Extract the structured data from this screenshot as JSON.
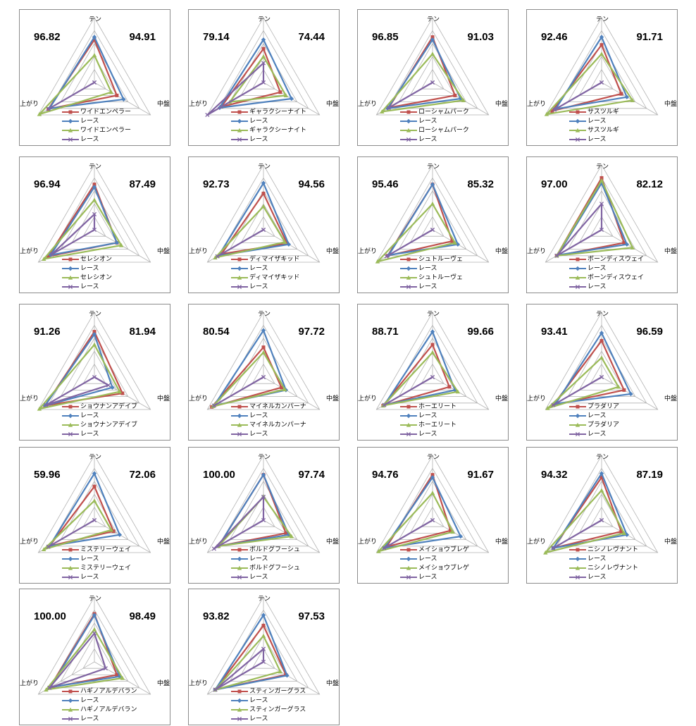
{
  "axes": [
    "テン",
    "中盤",
    "上がり"
  ],
  "series_colors": {
    "horse": "#c0504d",
    "race": "#4f81bd",
    "horse2": "#9bbb59",
    "race2": "#8064a2"
  },
  "race_label": "レース",
  "chart_data": [
    {
      "type": "radar",
      "horse": "ワイドエンペラー",
      "left_score": "96.82",
      "right_score": "94.91",
      "series": [
        {
          "name": "ワイドエンペラー",
          "values": [
            0.66,
            0.4,
            0.82
          ]
        },
        {
          "name": "レース",
          "values": [
            0.7,
            0.52,
            0.8
          ]
        },
        {
          "name": "ワイドエンペラー",
          "values": [
            0.42,
            0.3,
            0.98
          ]
        },
        {
          "name": "レース",
          "values": [
            0.0,
            0.0,
            0.82
          ]
        }
      ]
    },
    {
      "type": "radar",
      "horse": "ギャラクシーナイト",
      "left_score": "79.14",
      "right_score": "74.44",
      "series": [
        {
          "name": "ギャラクシーナイト",
          "values": [
            0.52,
            0.3,
            0.75
          ]
        },
        {
          "name": "レース",
          "values": [
            0.66,
            0.5,
            0.78
          ]
        },
        {
          "name": "ギャラクシーナイト",
          "values": [
            0.4,
            0.4,
            0.6
          ]
        },
        {
          "name": "レース",
          "values": [
            0.3,
            0.0,
            1.0
          ]
        }
      ]
    },
    {
      "type": "radar",
      "horse": "ローシャムパーク",
      "left_score": "96.85",
      "right_score": "91.03",
      "series": [
        {
          "name": "ローシャムパーク",
          "values": [
            0.7,
            0.4,
            0.78
          ]
        },
        {
          "name": "レース",
          "values": [
            0.66,
            0.5,
            0.8
          ]
        },
        {
          "name": "ローシャムパーク",
          "values": [
            0.44,
            0.55,
            0.9
          ]
        },
        {
          "name": "レース",
          "values": [
            0.0,
            0.0,
            0.78
          ]
        }
      ]
    },
    {
      "type": "radar",
      "horse": "サスツルギ",
      "left_score": "92.46",
      "right_score": "91.71",
      "series": [
        {
          "name": "サスツルギ",
          "values": [
            0.58,
            0.35,
            0.88
          ]
        },
        {
          "name": "レース",
          "values": [
            0.7,
            0.45,
            0.82
          ]
        },
        {
          "name": "サスツルギ",
          "values": [
            0.44,
            0.55,
            0.98
          ]
        },
        {
          "name": "レース",
          "values": [
            0.0,
            0.0,
            0.84
          ]
        }
      ]
    },
    {
      "type": "radar",
      "horse": "セレシオン",
      "left_score": "96.94",
      "right_score": "87.49",
      "series": [
        {
          "name": "セレシオン",
          "values": [
            0.7,
            0.4,
            0.82
          ]
        },
        {
          "name": "レース",
          "values": [
            0.66,
            0.4,
            0.78
          ]
        },
        {
          "name": "セレシオン",
          "values": [
            0.46,
            0.48,
            0.9
          ]
        },
        {
          "name": "レース",
          "values": [
            0.24,
            0.0,
            0.76
          ]
        }
      ]
    },
    {
      "type": "radar",
      "horse": "ディマイザキッド",
      "left_score": "92.73",
      "right_score": "94.56",
      "series": [
        {
          "name": "ディマイザキッド",
          "values": [
            0.56,
            0.42,
            0.75
          ]
        },
        {
          "name": "レース",
          "values": [
            0.72,
            0.45,
            0.8
          ]
        },
        {
          "name": "ディマイザキッド",
          "values": [
            0.36,
            0.38,
            0.86
          ]
        },
        {
          "name": "レース",
          "values": [
            0.0,
            0.0,
            0.82
          ]
        }
      ]
    },
    {
      "type": "radar",
      "horse": "シュトルーヴェ",
      "left_score": "95.46",
      "right_score": "85.32",
      "series": [
        {
          "name": "シュトルーヴェ",
          "values": [
            0.7,
            0.35,
            0.8
          ]
        },
        {
          "name": "レース",
          "values": [
            0.7,
            0.45,
            0.78
          ]
        },
        {
          "name": "シュトルーヴェ",
          "values": [
            0.4,
            0.4,
            0.98
          ]
        },
        {
          "name": "レース",
          "values": [
            0.0,
            0.0,
            0.82
          ]
        }
      ]
    },
    {
      "type": "radar",
      "horse": "ボーンディスウェイ",
      "left_score": "97.00",
      "right_score": "82.12",
      "series": [
        {
          "name": "ボーンディスウェイ",
          "values": [
            0.8,
            0.4,
            0.8
          ]
        },
        {
          "name": "レース",
          "values": [
            0.72,
            0.45,
            0.78
          ]
        },
        {
          "name": "ボーンディスウェイ",
          "values": [
            0.76,
            0.55,
            0.8
          ]
        },
        {
          "name": "レース",
          "values": [
            0.4,
            0.0,
            0.8
          ]
        }
      ]
    },
    {
      "type": "radar",
      "horse": "ショウナンアデイブ",
      "left_score": "91.26",
      "right_score": "81.94",
      "series": [
        {
          "name": "ショウナンアデイブ",
          "values": [
            0.7,
            0.5,
            0.88
          ]
        },
        {
          "name": "レース",
          "values": [
            0.66,
            0.32,
            0.88
          ]
        },
        {
          "name": "ショウナンアデイブ",
          "values": [
            0.5,
            0.45,
            0.98
          ]
        },
        {
          "name": "レース",
          "values": [
            0.0,
            0.25,
            0.86
          ]
        }
      ]
    },
    {
      "type": "radar",
      "horse": "マイネルカンパーナ",
      "left_score": "80.54",
      "right_score": "97.72",
      "series": [
        {
          "name": "マイネルカンパーナ",
          "values": [
            0.46,
            0.32,
            0.92
          ]
        },
        {
          "name": "レース",
          "values": [
            0.72,
            0.4,
            0.88
          ]
        },
        {
          "name": "マイネルカンパーナ",
          "values": [
            0.38,
            0.38,
            0.9
          ]
        },
        {
          "name": "レース",
          "values": [
            0.0,
            0.0,
            0.88
          ]
        }
      ]
    },
    {
      "type": "radar",
      "horse": "ホーエリート",
      "left_score": "88.71",
      "right_score": "99.66",
      "series": [
        {
          "name": "ホーエリート",
          "values": [
            0.5,
            0.3,
            0.88
          ]
        },
        {
          "name": "レース",
          "values": [
            0.7,
            0.4,
            0.86
          ]
        },
        {
          "name": "ホーエリート",
          "values": [
            0.38,
            0.45,
            0.88
          ]
        },
        {
          "name": "レース",
          "values": [
            0.0,
            0.0,
            0.86
          ]
        }
      ]
    },
    {
      "type": "radar",
      "horse": "プラダリア",
      "left_score": "93.41",
      "right_score": "96.59",
      "series": [
        {
          "name": "プラダリア",
          "values": [
            0.56,
            0.4,
            0.86
          ]
        },
        {
          "name": "レース",
          "values": [
            0.68,
            0.52,
            0.82
          ]
        },
        {
          "name": "プラダリア",
          "values": [
            0.3,
            0.3,
            0.96
          ]
        },
        {
          "name": "レース",
          "values": [
            0.0,
            0.0,
            0.86
          ]
        }
      ]
    },
    {
      "type": "radar",
      "horse": "ミステリーウェイ",
      "left_score": "59.96",
      "right_score": "72.06",
      "series": [
        {
          "name": "ミステリーウェイ",
          "values": [
            0.52,
            0.34,
            0.8
          ]
        },
        {
          "name": "レース",
          "values": [
            0.72,
            0.45,
            0.8
          ]
        },
        {
          "name": "ミステリーウェイ",
          "values": [
            0.3,
            0.3,
            0.9
          ]
        },
        {
          "name": "レース",
          "values": [
            0.0,
            0.0,
            0.82
          ]
        }
      ]
    },
    {
      "type": "radar",
      "horse": "ボルドグフーシュ",
      "left_score": "100.00",
      "right_score": "97.74",
      "series": [
        {
          "name": "ボルドグフーシュ",
          "values": [
            0.7,
            0.4,
            0.8
          ]
        },
        {
          "name": "レース",
          "values": [
            0.7,
            0.45,
            0.8
          ]
        },
        {
          "name": "ボルドグフーシュ",
          "values": [
            0.36,
            0.5,
            0.8
          ]
        },
        {
          "name": "レース",
          "values": [
            0.36,
            0.0,
            0.88
          ]
        }
      ]
    },
    {
      "type": "radar",
      "horse": "メイショウブレゲ",
      "left_score": "94.76",
      "right_score": "91.67",
      "series": [
        {
          "name": "メイショウブレゲ",
          "values": [
            0.7,
            0.32,
            0.82
          ]
        },
        {
          "name": "レース",
          "values": [
            0.66,
            0.5,
            0.86
          ]
        },
        {
          "name": "メイショウブレゲ",
          "values": [
            0.42,
            0.36,
            0.96
          ]
        },
        {
          "name": "レース",
          "values": [
            0.0,
            0.0,
            0.86
          ]
        }
      ]
    },
    {
      "type": "radar",
      "horse": "ニシノレヴナント",
      "left_score": "94.32",
      "right_score": "87.19",
      "series": [
        {
          "name": "ニシノレヴナント",
          "values": [
            0.66,
            0.35,
            0.86
          ]
        },
        {
          "name": "レース",
          "values": [
            0.72,
            0.45,
            0.86
          ]
        },
        {
          "name": "ニシノレヴナント",
          "values": [
            0.46,
            0.4,
            1.0
          ]
        },
        {
          "name": "レース",
          "values": [
            0.0,
            0.0,
            0.86
          ]
        }
      ]
    },
    {
      "type": "radar",
      "horse": "ハギノアルデバラン",
      "left_score": "100.00",
      "right_score": "98.49",
      "series": [
        {
          "name": "ハギノアルデバラン",
          "values": [
            0.74,
            0.4,
            0.8
          ]
        },
        {
          "name": "レース",
          "values": [
            0.72,
            0.45,
            0.78
          ]
        },
        {
          "name": "ハギノアルデバラン",
          "values": [
            0.5,
            0.5,
            0.86
          ]
        },
        {
          "name": "レース",
          "values": [
            0.44,
            0.2,
            0.8
          ]
        }
      ]
    },
    {
      "type": "radar",
      "horse": "スティンガーグラス",
      "left_score": "93.82",
      "right_score": "97.53",
      "series": [
        {
          "name": "スティンガーグラス",
          "values": [
            0.56,
            0.4,
            0.86
          ]
        },
        {
          "name": "レース",
          "values": [
            0.72,
            0.42,
            0.86
          ]
        },
        {
          "name": "スティンガーグラス",
          "values": [
            0.4,
            0.3,
            0.86
          ]
        },
        {
          "name": "レース",
          "values": [
            0.2,
            0.0,
            0.86
          ]
        }
      ]
    }
  ]
}
